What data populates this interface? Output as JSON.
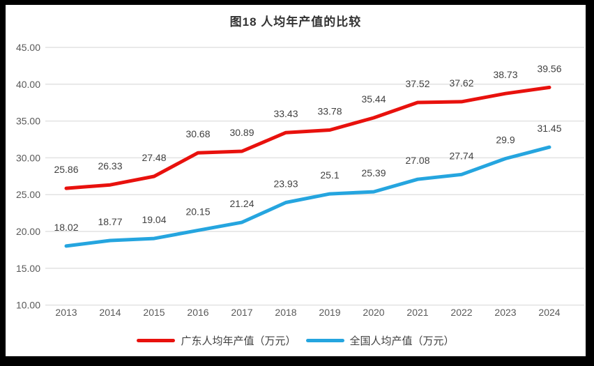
{
  "chart_data": {
    "type": "line",
    "title": "图18 人均年产值的比较",
    "categories": [
      "2013",
      "2014",
      "2015",
      "2016",
      "2017",
      "2018",
      "2019",
      "2020",
      "2021",
      "2022",
      "2023",
      "2024"
    ],
    "series": [
      {
        "name": "广东人均年产值（万元）",
        "color": "#e8110d",
        "values": [
          25.86,
          26.33,
          27.48,
          30.68,
          30.89,
          33.43,
          33.78,
          35.44,
          37.52,
          37.62,
          38.73,
          39.56
        ]
      },
      {
        "name": "全国人均产值（万元）",
        "color": "#25a5df",
        "values": [
          18.02,
          18.77,
          19.04,
          20.15,
          21.24,
          23.93,
          25.1,
          25.39,
          27.08,
          27.74,
          29.9,
          31.45
        ]
      }
    ],
    "ylim": [
      10,
      45
    ],
    "ytick_labels": [
      "45.00",
      "40.00",
      "35.00",
      "30.00",
      "25.00",
      "20.00",
      "15.00",
      "10.00"
    ],
    "grid": true,
    "legend_position": "bottom",
    "colors": {
      "gridline": "#e2e2e2",
      "tick_text": "#595959",
      "data_label": "#404040",
      "background": "#ffffff",
      "frame_border": "#000000"
    }
  }
}
